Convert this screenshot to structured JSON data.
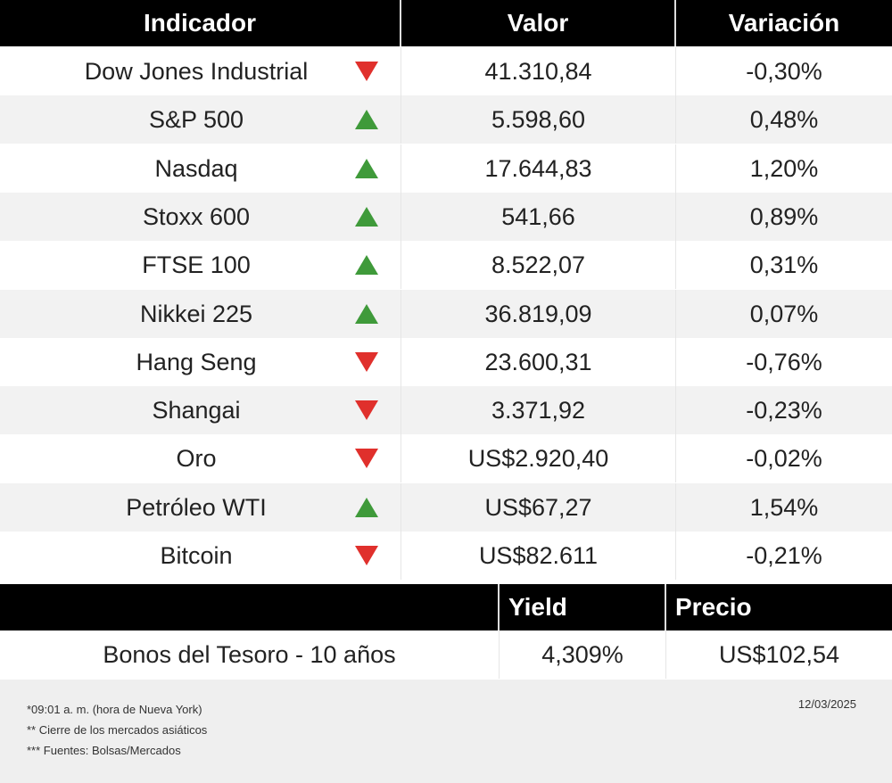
{
  "table": {
    "headers": [
      "Indicador",
      "Valor",
      "Variación"
    ],
    "rows": [
      {
        "name": "Dow Jones Industrial",
        "trend": "down",
        "value": "41.310,84",
        "change": "-0,30%"
      },
      {
        "name": "S&P 500",
        "trend": "up",
        "value": "5.598,60",
        "change": "0,48%"
      },
      {
        "name": "Nasdaq",
        "trend": "up",
        "value": "17.644,83",
        "change": "1,20%"
      },
      {
        "name": "Stoxx 600",
        "trend": "up",
        "value": "541,66",
        "change": "0,89%"
      },
      {
        "name": "FTSE 100",
        "trend": "up",
        "value": "8.522,07",
        "change": "0,31%"
      },
      {
        "name": "Nikkei 225",
        "trend": "up",
        "value": "36.819,09",
        "change": "0,07%"
      },
      {
        "name": "Hang Seng",
        "trend": "down",
        "value": "23.600,31",
        "change": "-0,76%"
      },
      {
        "name": "Shangai",
        "trend": "down",
        "value": "3.371,92",
        "change": "-0,23%"
      },
      {
        "name": "Oro",
        "trend": "down",
        "value": "US$2.920,40",
        "change": "-0,02%"
      },
      {
        "name": "Petróleo WTI",
        "trend": "up",
        "value": "US$67,27",
        "change": "1,54%"
      },
      {
        "name": "Bitcoin",
        "trend": "down",
        "value": "US$82.611",
        "change": "-0,21%"
      }
    ]
  },
  "bonds": {
    "headers": [
      "Yield",
      "Precio"
    ],
    "name": "Bonos del Tesoro - 10 años",
    "yield": "4,309%",
    "price": "US$102,54"
  },
  "footer": {
    "notes": [
      "*09:01 a. m. (hora de Nueva York)",
      "** Cierre de los mercados asiáticos",
      "*** Fuentes: Bolsas/Mercados"
    ],
    "date": "12/03/2025"
  },
  "colors": {
    "up": "#3f9a3a",
    "down": "#e0302c"
  }
}
